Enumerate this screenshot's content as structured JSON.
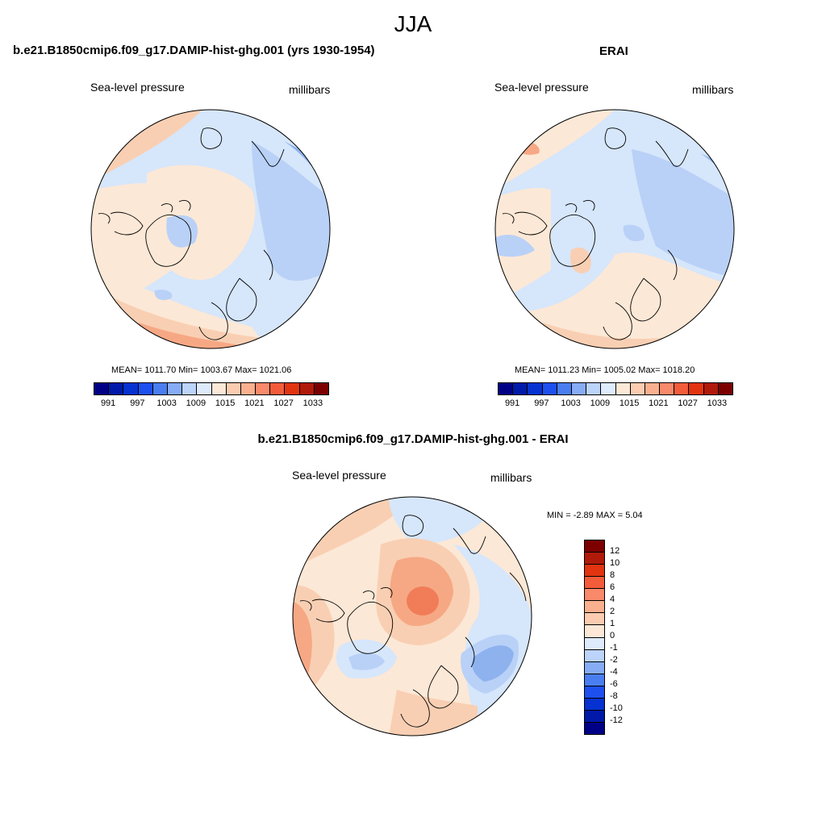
{
  "season": "JJA",
  "panels": {
    "model": {
      "title": "b.e21.B1850cmip6.f09_g17.DAMIP-hist-ghg.001 (yrs 1930-1954)",
      "variable": "Sea-level pressure",
      "units": "millibars",
      "stats": "MEAN= 1011.70  Min= 1003.67  Max= 1021.06"
    },
    "obs": {
      "title": "ERAI",
      "variable": "Sea-level pressure",
      "units": "millibars",
      "stats": "MEAN= 1011.23  Min= 1005.02  Max= 1018.20"
    },
    "diff": {
      "title": "b.e21.B1850cmip6.f09_g17.DAMIP-hist-ghg.001 - ERAI",
      "variable": "Sea-level pressure",
      "units": "millibars",
      "stats": "MIN =  -2.89 MAX =   5.04"
    }
  },
  "colorbars": {
    "abs": {
      "tick_labels": [
        "991",
        "997",
        "1003",
        "1009",
        "1015",
        "1021",
        "1027",
        "1033"
      ],
      "colors": [
        "#000087",
        "#0019a8",
        "#0532d0",
        "#1e50f0",
        "#4a7ef0",
        "#86acf5",
        "#bcd3fa",
        "#deebfc",
        "#fde8d7",
        "#fcccb0",
        "#fab08e",
        "#f8896a",
        "#f35c3a",
        "#e23410",
        "#b01a0a",
        "#7d0000"
      ]
    },
    "diff": {
      "tick_labels": [
        "12",
        "10",
        "8",
        "6",
        "4",
        "2",
        "1",
        "0",
        "-1",
        "-2",
        "-4",
        "-6",
        "-8",
        "-10",
        "-12"
      ],
      "colors": [
        "#7d0000",
        "#b01a0a",
        "#e23410",
        "#f35c3a",
        "#f8896a",
        "#fab08e",
        "#fcccb0",
        "#fde8d7",
        "#deebfc",
        "#bcd3fa",
        "#86acf5",
        "#4a7ef0",
        "#1e50f0",
        "#0532d0",
        "#0019a8",
        "#000087"
      ]
    }
  },
  "field_colors": {
    "light_blue": "#d6e6fb",
    "mid_blue": "#b9d1f7",
    "blue": "#8eb2ee",
    "cream": "#fce8d6",
    "peach": "#f9cfb3",
    "salmon": "#f6a884",
    "orange": "#f07d58",
    "coastline": "#000000"
  }
}
